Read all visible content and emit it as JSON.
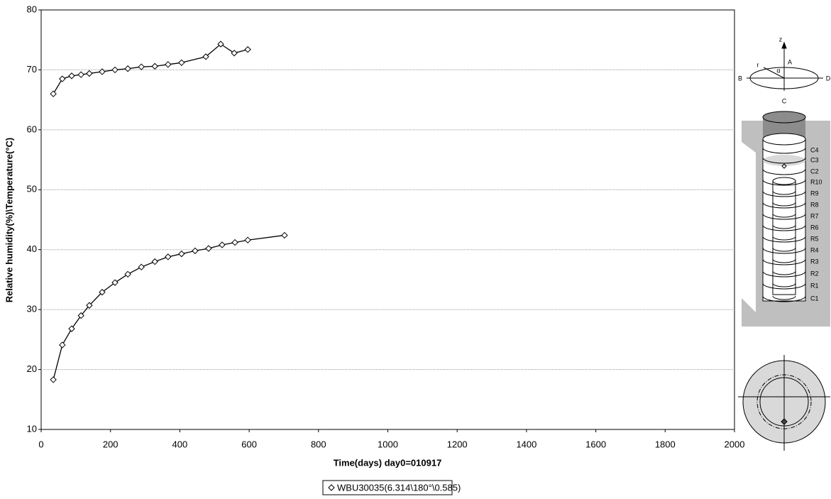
{
  "chart_data": {
    "type": "line",
    "xlabel": "Time(days) day0=010917",
    "ylabel": "Relative humidity(%)\\Temperature(°C)",
    "xlim": [
      0,
      2000
    ],
    "xticks": [
      0,
      200,
      400,
      600,
      800,
      1000,
      1200,
      1400,
      1600,
      1800,
      2000
    ],
    "ylim": [
      10,
      80
    ],
    "yticks": [
      10,
      20,
      30,
      40,
      50,
      60,
      70,
      80
    ],
    "grid": true,
    "series": [
      {
        "name": "WBU30035(6.314\\180°\\0.585)",
        "color": "#000000",
        "x": [
          35,
          61,
          88,
          115,
          139,
          176,
          213,
          250,
          289,
          328,
          366,
          405,
          444,
          483,
          522,
          559,
          596,
          702
        ],
        "values": [
          18.3,
          24.1,
          26.8,
          29,
          30.7,
          32.9,
          34.5,
          35.9,
          37.1,
          38,
          38.8,
          39.3,
          39.8,
          40.2,
          40.8,
          41.2,
          41.6,
          42.4
        ]
      },
      {
        "color": "#000000",
        "x": [
          35,
          61,
          88,
          115,
          139,
          176,
          213,
          250,
          289,
          328,
          366,
          405,
          475,
          518,
          557,
          596
        ],
        "values": [
          66,
          68.5,
          69,
          69.2,
          69.4,
          69.7,
          70,
          70.2,
          70.5,
          70.6,
          70.9,
          71.2,
          72.2,
          74.3,
          72.8,
          73.4
        ]
      }
    ]
  },
  "diagram": {
    "axes_labels": [
      "z",
      "A",
      "B",
      "C",
      "D",
      "r",
      "α"
    ],
    "layer_labels": [
      "C4",
      "C3",
      "C2",
      "R10",
      "R9",
      "R8",
      "R7",
      "R6",
      "R5",
      "R4",
      "R3",
      "R2",
      "R1",
      "C1"
    ]
  }
}
